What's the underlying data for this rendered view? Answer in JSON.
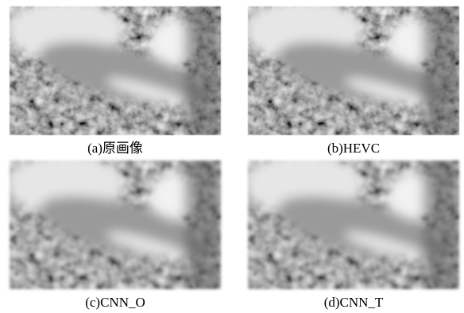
{
  "figures": [
    {
      "caption": "(a)原画像"
    },
    {
      "caption": "(b)HEVC"
    },
    {
      "caption": "(c)CNN_O"
    },
    {
      "caption": "(d)CNN_T"
    }
  ]
}
